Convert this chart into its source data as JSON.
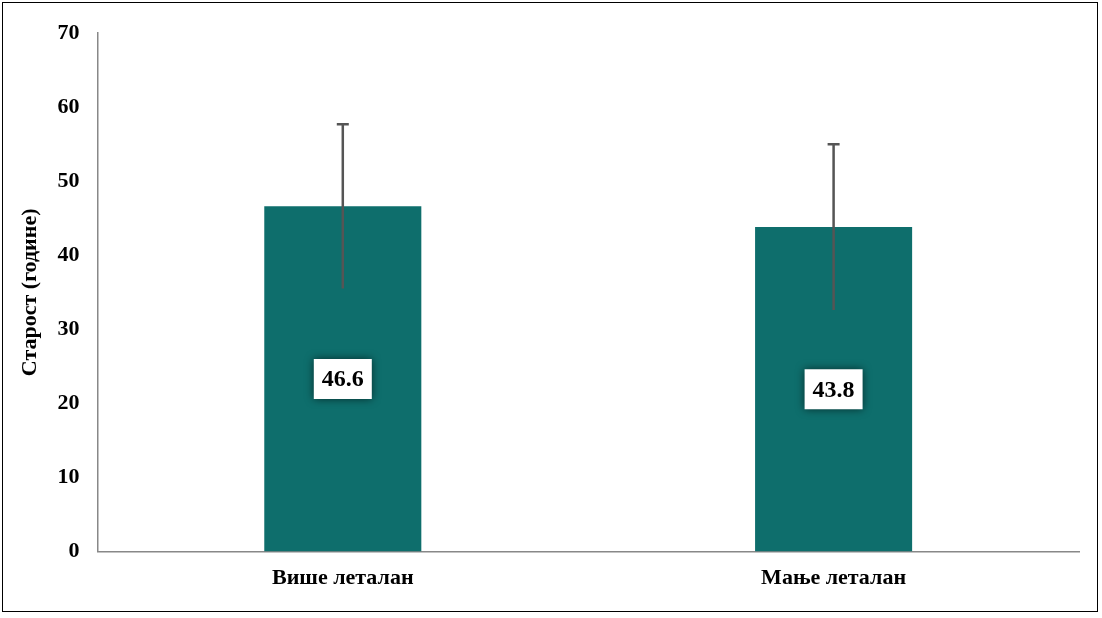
{
  "chart_data": {
    "type": "bar",
    "ylabel": "Старост (године)",
    "categories": [
      "Више леталан",
      "Мање леталан"
    ],
    "values": [
      46.6,
      43.8
    ],
    "errors": [
      11.1,
      11.2
    ],
    "color": "#0e6e6c",
    "ylim": [
      0,
      70
    ],
    "yticks": [
      0,
      10,
      20,
      30,
      40,
      50,
      60,
      70
    ],
    "grid": false,
    "legend": false,
    "data_labels": true
  }
}
